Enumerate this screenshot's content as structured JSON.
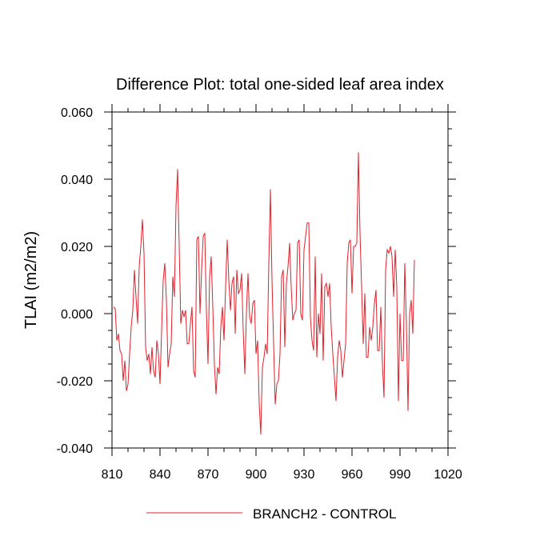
{
  "chart_data": {
    "type": "line",
    "title": "Difference Plot: total one-sided leaf area index",
    "xlabel": "",
    "ylabel": "TLAI  (m2/m2)",
    "xlim": [
      810,
      1020
    ],
    "ylim": [
      -0.04,
      0.06
    ],
    "x_ticks": [
      810,
      840,
      870,
      900,
      930,
      960,
      990,
      1020
    ],
    "x_tick_labels": [
      "810",
      "840",
      "870",
      "900",
      "930",
      "960",
      "990",
      "1020"
    ],
    "y_ticks": [
      -0.04,
      -0.02,
      0.0,
      0.02,
      0.04,
      0.06
    ],
    "y_tick_labels": [
      "-0.040",
      "-0.020",
      "0.000",
      "0.020",
      "0.040",
      "0.060"
    ],
    "grid": false,
    "legend_position": "bottom-center",
    "series": [
      {
        "name": "BRANCH2 - CONTROL",
        "color": "#e0202a",
        "x_start": 811,
        "x_step": 1,
        "values": [
          0.002,
          0.0015,
          -0.008,
          -0.006,
          -0.011,
          -0.012,
          -0.02,
          -0.014,
          -0.023,
          -0.021,
          -0.012,
          -0.004,
          0.001,
          0.013,
          0.005,
          -0.003,
          0.014,
          0.02,
          0.028,
          0.018,
          -0.01,
          -0.014,
          -0.012,
          -0.018,
          -0.01,
          -0.017,
          -0.019,
          -0.008,
          -0.012,
          -0.021,
          -0.005,
          0.01,
          0.015,
          0.004,
          -0.016,
          -0.012,
          -0.009,
          0.011,
          0.005,
          0.032,
          0.043,
          0.02,
          -0.003,
          0.001,
          -0.001,
          0.001,
          -0.009,
          -0.009,
          -0.003,
          0.002,
          -0.017,
          -0.019,
          0.022,
          0.023,
          0.0,
          0.013,
          0.023,
          0.024,
          0.001,
          -0.015,
          0.011,
          0.017,
          0.002,
          -0.015,
          -0.024,
          -0.016,
          -0.018,
          -0.004,
          0.002,
          -0.008,
          0.008,
          0.022,
          0.01,
          0.001,
          0.009,
          0.011,
          -0.006,
          0.013,
          0.006,
          0.007,
          0.012,
          -0.005,
          -0.018,
          0.0,
          0.012,
          -0.001,
          -0.003,
          0.003,
          0.004,
          -0.012,
          -0.008,
          -0.027,
          -0.036,
          -0.016,
          -0.013,
          -0.009,
          -0.012,
          0.015,
          0.037,
          0.01,
          -0.009,
          -0.027,
          -0.021,
          -0.02,
          -0.012,
          0.011,
          0.013,
          -0.01,
          0.009,
          0.014,
          0.021,
          0.008,
          -0.002,
          0.0,
          0.001,
          0.021,
          0.022,
          0.0,
          -0.002,
          0.019,
          0.023,
          0.027,
          0.027,
          -0.001,
          -0.008,
          -0.011,
          0.017,
          -0.013,
          0.0,
          -0.006,
          0.012,
          -0.014,
          0.008,
          0.009,
          0.005,
          0.009,
          -0.004,
          -0.012,
          -0.019,
          -0.026,
          -0.013,
          -0.008,
          -0.011,
          -0.019,
          -0.014,
          -0.009,
          0.015,
          0.021,
          0.022,
          0.006,
          0.02,
          0.02,
          0.021,
          0.048,
          0.024,
          0.008,
          -0.009,
          0.006,
          -0.013,
          -0.013,
          -0.004,
          -0.008,
          -0.004,
          0.003,
          0.007,
          -0.011,
          -0.011,
          0.002,
          -0.015,
          -0.025,
          0.013,
          0.019,
          0.018,
          0.02,
          0.017,
          0.005,
          0.019,
          0.008,
          -0.026,
          0.0,
          -0.014,
          -0.014,
          0.015,
          -0.003,
          -0.029,
          0.0,
          0.004,
          -0.006,
          0.016
        ]
      }
    ]
  }
}
